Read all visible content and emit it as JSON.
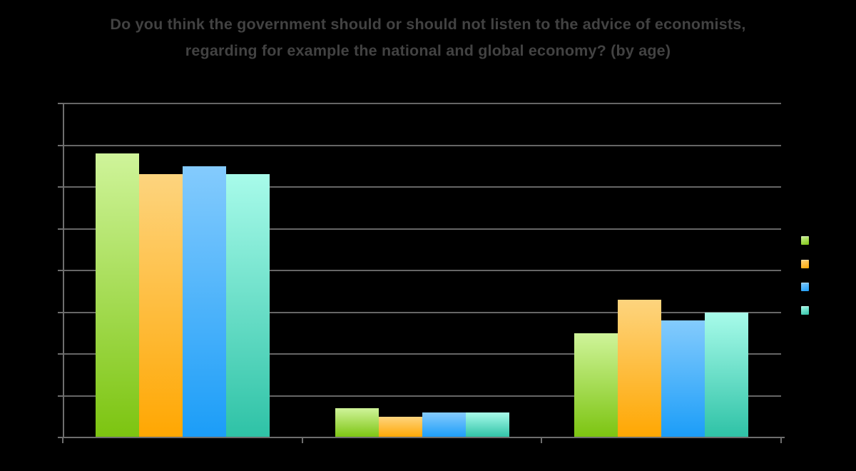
{
  "title": {
    "text": "Do you think the government should or should not listen to the advice of economists, regarding for example the national and global economy? (by age)"
  },
  "colors": {
    "background": "#000000",
    "title_text": "#424242",
    "gridline": "#666666",
    "axis": "#6e6e6e"
  },
  "chart_data": {
    "type": "bar",
    "title": "Do you think the government should or should not listen to the advice of economists, regarding for example the national and global economy? (by age)",
    "categories": [
      "",
      "",
      ""
    ],
    "categories_note": "x-axis category labels are rendered black-on-black and not legible in the image",
    "series": [
      {
        "name": "",
        "swatch": "legend-swatch-1",
        "color_top": "#cff49a",
        "color_bottom": "#7cc410",
        "values": [
          68,
          7,
          25
        ]
      },
      {
        "name": "",
        "swatch": "legend-swatch-2",
        "color_top": "#fdd47e",
        "color_bottom": "#ffa702",
        "values": [
          63,
          5,
          33
        ]
      },
      {
        "name": "",
        "swatch": "legend-swatch-3",
        "color_top": "#84cbfd",
        "color_bottom": "#1b9df8",
        "values": [
          65,
          6,
          28
        ]
      },
      {
        "name": "",
        "swatch": "legend-swatch-4",
        "color_top": "#a8fbea",
        "color_bottom": "#2ec2a6",
        "values": [
          63,
          6,
          30
        ]
      }
    ],
    "y_axis": {
      "min": 0,
      "max": 80,
      "gridline_interval": 10,
      "tick_labels_visible": false
    },
    "x_axis": {
      "tick_labels_visible": false,
      "category_tick_count": 4
    },
    "legend": {
      "position": "right",
      "labels_visible": false
    },
    "grid": true,
    "units": "percent (estimated from gridline spacing; numeric labels not visible in image)"
  }
}
